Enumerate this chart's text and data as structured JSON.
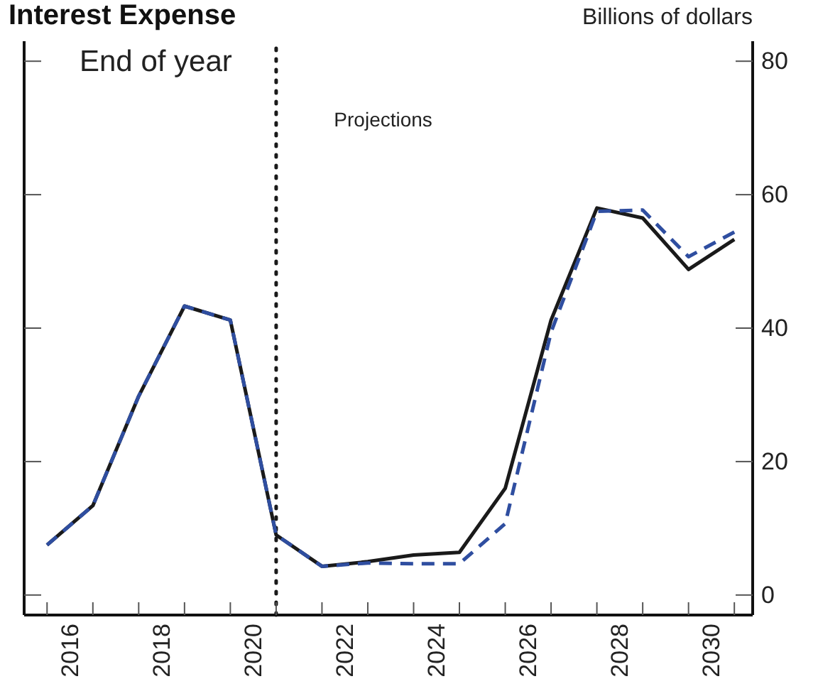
{
  "chart_data": {
    "type": "line",
    "title": "Interest Expense",
    "ylabel": "Billions of dollars",
    "annotations": [
      "End of year"
    ],
    "x": [
      2016,
      2017,
      2018,
      2019,
      2020,
      2021,
      2022,
      2023,
      2024,
      2025,
      2026,
      2027,
      2028,
      2029,
      2030,
      2031
    ],
    "series": [
      {
        "color": "#1a1a1a",
        "line_style": "solid",
        "values": [
          7.5,
          13.4,
          29.8,
          43.3,
          41.2,
          9,
          4.3,
          5,
          6,
          6.4,
          16,
          41.2,
          58,
          56.5,
          48.8,
          53.3
        ]
      },
      {
        "color": "#2f4ea0",
        "line_style": "dashed",
        "values": [
          7.5,
          13.4,
          29.8,
          43.3,
          41.2,
          9,
          4.3,
          4.8,
          4.7,
          4.7,
          10.7,
          39.4,
          57.5,
          57.7,
          50.7,
          54.4
        ]
      }
    ],
    "xlim": [
      2015.5,
      2031.4
    ],
    "xticks": [
      {
        "value": 2016,
        "label": null
      },
      {
        "value": 2016.5,
        "label": "2016"
      },
      {
        "value": 2017,
        "label": null
      },
      {
        "value": 2018,
        "label": null
      },
      {
        "value": 2018.5,
        "label": "2018"
      },
      {
        "value": 2019,
        "label": null
      },
      {
        "value": 2020,
        "label": null
      },
      {
        "value": 2020.5,
        "label": "2020"
      },
      {
        "value": 2021,
        "label": null
      },
      {
        "value": 2022,
        "label": null
      },
      {
        "value": 2022.5,
        "label": "2022"
      },
      {
        "value": 2023,
        "label": null
      },
      {
        "value": 2024,
        "label": null
      },
      {
        "value": 2024.5,
        "label": "2024"
      },
      {
        "value": 2025,
        "label": null
      },
      {
        "value": 2026,
        "label": null
      },
      {
        "value": 2026.5,
        "label": "2026"
      },
      {
        "value": 2027,
        "label": null
      },
      {
        "value": 2028,
        "label": null
      },
      {
        "value": 2028.5,
        "label": "2028"
      },
      {
        "value": 2029,
        "label": null
      },
      {
        "value": 2030,
        "label": null
      },
      {
        "value": 2030.5,
        "label": "2030"
      },
      {
        "value": 2031,
        "label": null
      }
    ],
    "ylim": [
      -3,
      83
    ],
    "yticks": [
      0,
      20,
      40,
      60,
      80
    ],
    "ref_lines": [
      {
        "axis": "x",
        "value": 2021,
        "label": "Projections",
        "color": "#1a1a1a",
        "line_style": "dotted"
      }
    ],
    "grid": false,
    "legend": false,
    "marker": "none"
  }
}
